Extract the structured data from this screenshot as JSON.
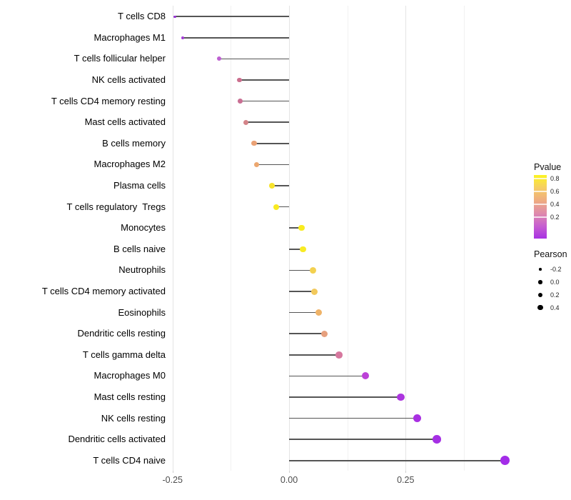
{
  "chart_data": {
    "type": "lollipop",
    "title": "",
    "xlabel": "",
    "ylabel": "",
    "x_axis": {
      "tick_labels": [
        "-0.25",
        "0.00",
        "0.25"
      ],
      "tick_values": [
        -0.25,
        0.0,
        0.25
      ],
      "minor_grid_values": [
        -0.125,
        0.125,
        0.375
      ],
      "range": [
        -0.27,
        0.5
      ]
    },
    "points": [
      {
        "label": "T cells CD8",
        "pearson": -0.245,
        "dot_color": "#9632D2",
        "dot_size": 3.2
      },
      {
        "label": "Macrophages M1",
        "pearson": -0.228,
        "dot_color": "#A43CD6",
        "dot_size": 3.8
      },
      {
        "label": "T cells follicular helper",
        "pearson": -0.15,
        "dot_color": "#BE60D2",
        "dot_size": 6.2
      },
      {
        "label": "NK cells activated",
        "pearson": -0.106,
        "dot_color": "#CB6F8E",
        "dot_size": 6.8
      },
      {
        "label": "T cells CD4 memory resting",
        "pearson": -0.105,
        "dot_color": "#C96F93",
        "dot_size": 6.8
      },
      {
        "label": "Mast cells activated",
        "pearson": -0.092,
        "dot_color": "#D48489",
        "dot_size": 7.0
      },
      {
        "label": "B cells memory",
        "pearson": -0.075,
        "dot_color": "#EAA175",
        "dot_size": 7.3
      },
      {
        "label": "Macrophages M2",
        "pearson": -0.07,
        "dot_color": "#ECA76F",
        "dot_size": 7.4
      },
      {
        "label": "Plasma cells",
        "pearson": -0.037,
        "dot_color": "#F7E32C",
        "dot_size": 7.8
      },
      {
        "label": "T cells regulatory  Tregs",
        "pearson": -0.027,
        "dot_color": "#F9EA21",
        "dot_size": 8.0
      },
      {
        "label": "Monocytes",
        "pearson": 0.027,
        "dot_color": "#F9EC1F",
        "dot_size": 8.6
      },
      {
        "label": "B cells naive",
        "pearson": 0.03,
        "dot_color": "#F8EB24",
        "dot_size": 8.6
      },
      {
        "label": "Neutrophils",
        "pearson": 0.051,
        "dot_color": "#F3D150",
        "dot_size": 8.9
      },
      {
        "label": "T cells CD4 memory activated",
        "pearson": 0.055,
        "dot_color": "#F2C95C",
        "dot_size": 9.0
      },
      {
        "label": "Eosinophils",
        "pearson": 0.064,
        "dot_color": "#EFB368",
        "dot_size": 9.1
      },
      {
        "label": "Dendritic cells resting",
        "pearson": 0.076,
        "dot_color": "#E6A07E",
        "dot_size": 9.3
      },
      {
        "label": "T cells gamma delta",
        "pearson": 0.107,
        "dot_color": "#D6789E",
        "dot_size": 9.6
      },
      {
        "label": "Macrophages M0",
        "pearson": 0.164,
        "dot_color": "#BC41D8",
        "dot_size": 10.2
      },
      {
        "label": "Mast cells resting",
        "pearson": 0.239,
        "dot_color": "#AC35DF",
        "dot_size": 10.9
      },
      {
        "label": "NK cells resting",
        "pearson": 0.275,
        "dot_color": "#A930E2",
        "dot_size": 11.2
      },
      {
        "label": "Dendritic cells activated",
        "pearson": 0.317,
        "dot_color": "#A52FE4",
        "dot_size": 11.6
      },
      {
        "label": "T cells CD4 naive",
        "pearson": 0.464,
        "dot_color": "#A32CE8",
        "dot_size": 13.0
      }
    ],
    "legend_pvalue": {
      "title": "Pvalue",
      "tick_labels": [
        "0.8",
        "0.6",
        "0.4",
        "0.2"
      ],
      "gradient_top_to_bottom": [
        "#FCF422",
        "#F6CE63",
        "#EFAC80",
        "#DF8BAB",
        "#C75FD0",
        "#A832E2"
      ]
    },
    "legend_pearson": {
      "title": "Pearson",
      "entries": [
        {
          "label": "-0.2",
          "size": 3.5
        },
        {
          "label": "0.0",
          "size": 5.5
        },
        {
          "label": "0.2",
          "size": 6.5
        },
        {
          "label": "0.4",
          "size": 7.5
        }
      ]
    },
    "style": {
      "stick_color": "#555555",
      "grid_major_color": "#e4e4e4",
      "grid_minor_color": "#f1f1f1",
      "legend_dot_color": "#000000"
    }
  }
}
